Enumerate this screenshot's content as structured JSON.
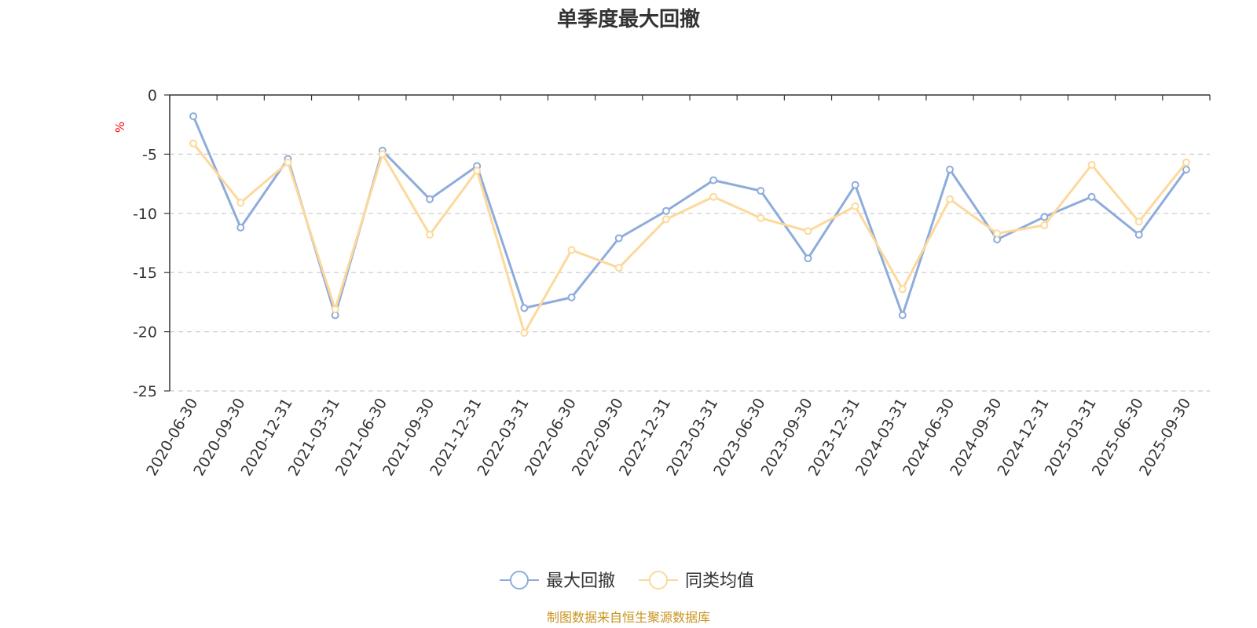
{
  "chart_data": {
    "type": "line",
    "title": "单季度最大回撤",
    "ylabel": "%",
    "ylim": [
      -25,
      0
    ],
    "yticks": [
      0,
      -5,
      -10,
      -15,
      -20,
      -25
    ],
    "grid": true,
    "legend_position": "bottom-center",
    "categories": [
      "2020-06-30",
      "2020-09-30",
      "2020-12-31",
      "2021-03-31",
      "2021-06-30",
      "2021-09-30",
      "2021-12-31",
      "2022-03-31",
      "2022-06-30",
      "2022-09-30",
      "2022-12-31",
      "2023-03-31",
      "2023-06-30",
      "2023-09-30",
      "2023-12-31",
      "2024-03-31",
      "2024-06-30",
      "2024-09-30",
      "2024-12-31",
      "2025-03-31",
      "2025-06-30",
      "2025-09-30"
    ],
    "series": [
      {
        "name": "最大回撤",
        "color": "#8eacdb",
        "values": [
          -1.8,
          -11.2,
          -5.4,
          -18.6,
          -4.7,
          -8.8,
          -6.0,
          -18.0,
          -17.1,
          -12.1,
          -9.8,
          -7.2,
          -8.1,
          -13.8,
          -7.6,
          -18.6,
          -6.3,
          -12.2,
          -10.3,
          -8.6,
          -11.8,
          -6.3
        ]
      },
      {
        "name": "同类均值",
        "color": "#fcd99b",
        "values": [
          -4.1,
          -9.1,
          -5.7,
          -18.1,
          -5.0,
          -11.8,
          -6.4,
          -20.1,
          -13.1,
          -14.6,
          -10.5,
          -8.6,
          -10.4,
          -11.5,
          -9.4,
          -16.4,
          -8.8,
          -11.7,
          -11.0,
          -5.9,
          -10.7,
          -5.7
        ]
      }
    ]
  },
  "source_note": "制图数据来自恒生聚源数据库",
  "colors": {
    "axis": "#333333",
    "grid": "#cccccc",
    "unit": "#ff0000",
    "source": "#c8951f"
  }
}
